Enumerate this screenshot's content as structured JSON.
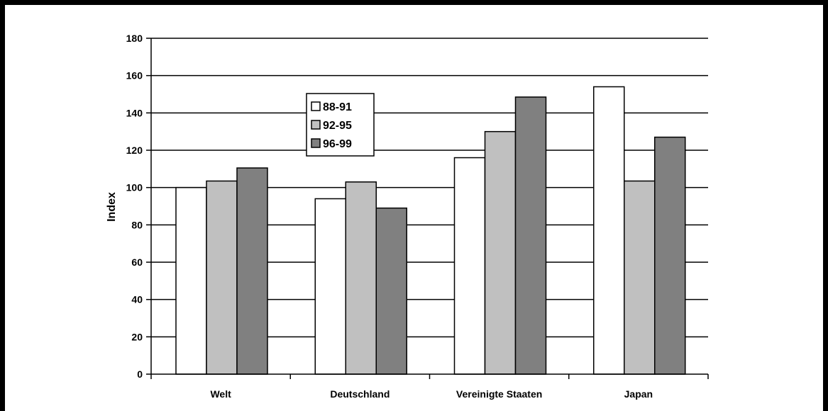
{
  "chart_data": {
    "type": "bar",
    "title": "",
    "xlabel": "",
    "ylabel": "Index",
    "ylim": [
      0,
      180
    ],
    "yticks": [
      0,
      20,
      40,
      60,
      80,
      100,
      120,
      140,
      160,
      180
    ],
    "grid": true,
    "legend_position": "inside-left",
    "categories": [
      "Welt",
      "Deutschland",
      "Vereinigte Staaten",
      "Japan"
    ],
    "series": [
      {
        "name": "88-91",
        "color": "#ffffff",
        "values": [
          100,
          94,
          116,
          154
        ]
      },
      {
        "name": "92-95",
        "color": "#c0c0c0",
        "values": [
          103.5,
          103,
          130,
          103.5
        ]
      },
      {
        "name": "96-99",
        "color": "#808080",
        "values": [
          110.5,
          89,
          148.5,
          127
        ]
      }
    ]
  }
}
